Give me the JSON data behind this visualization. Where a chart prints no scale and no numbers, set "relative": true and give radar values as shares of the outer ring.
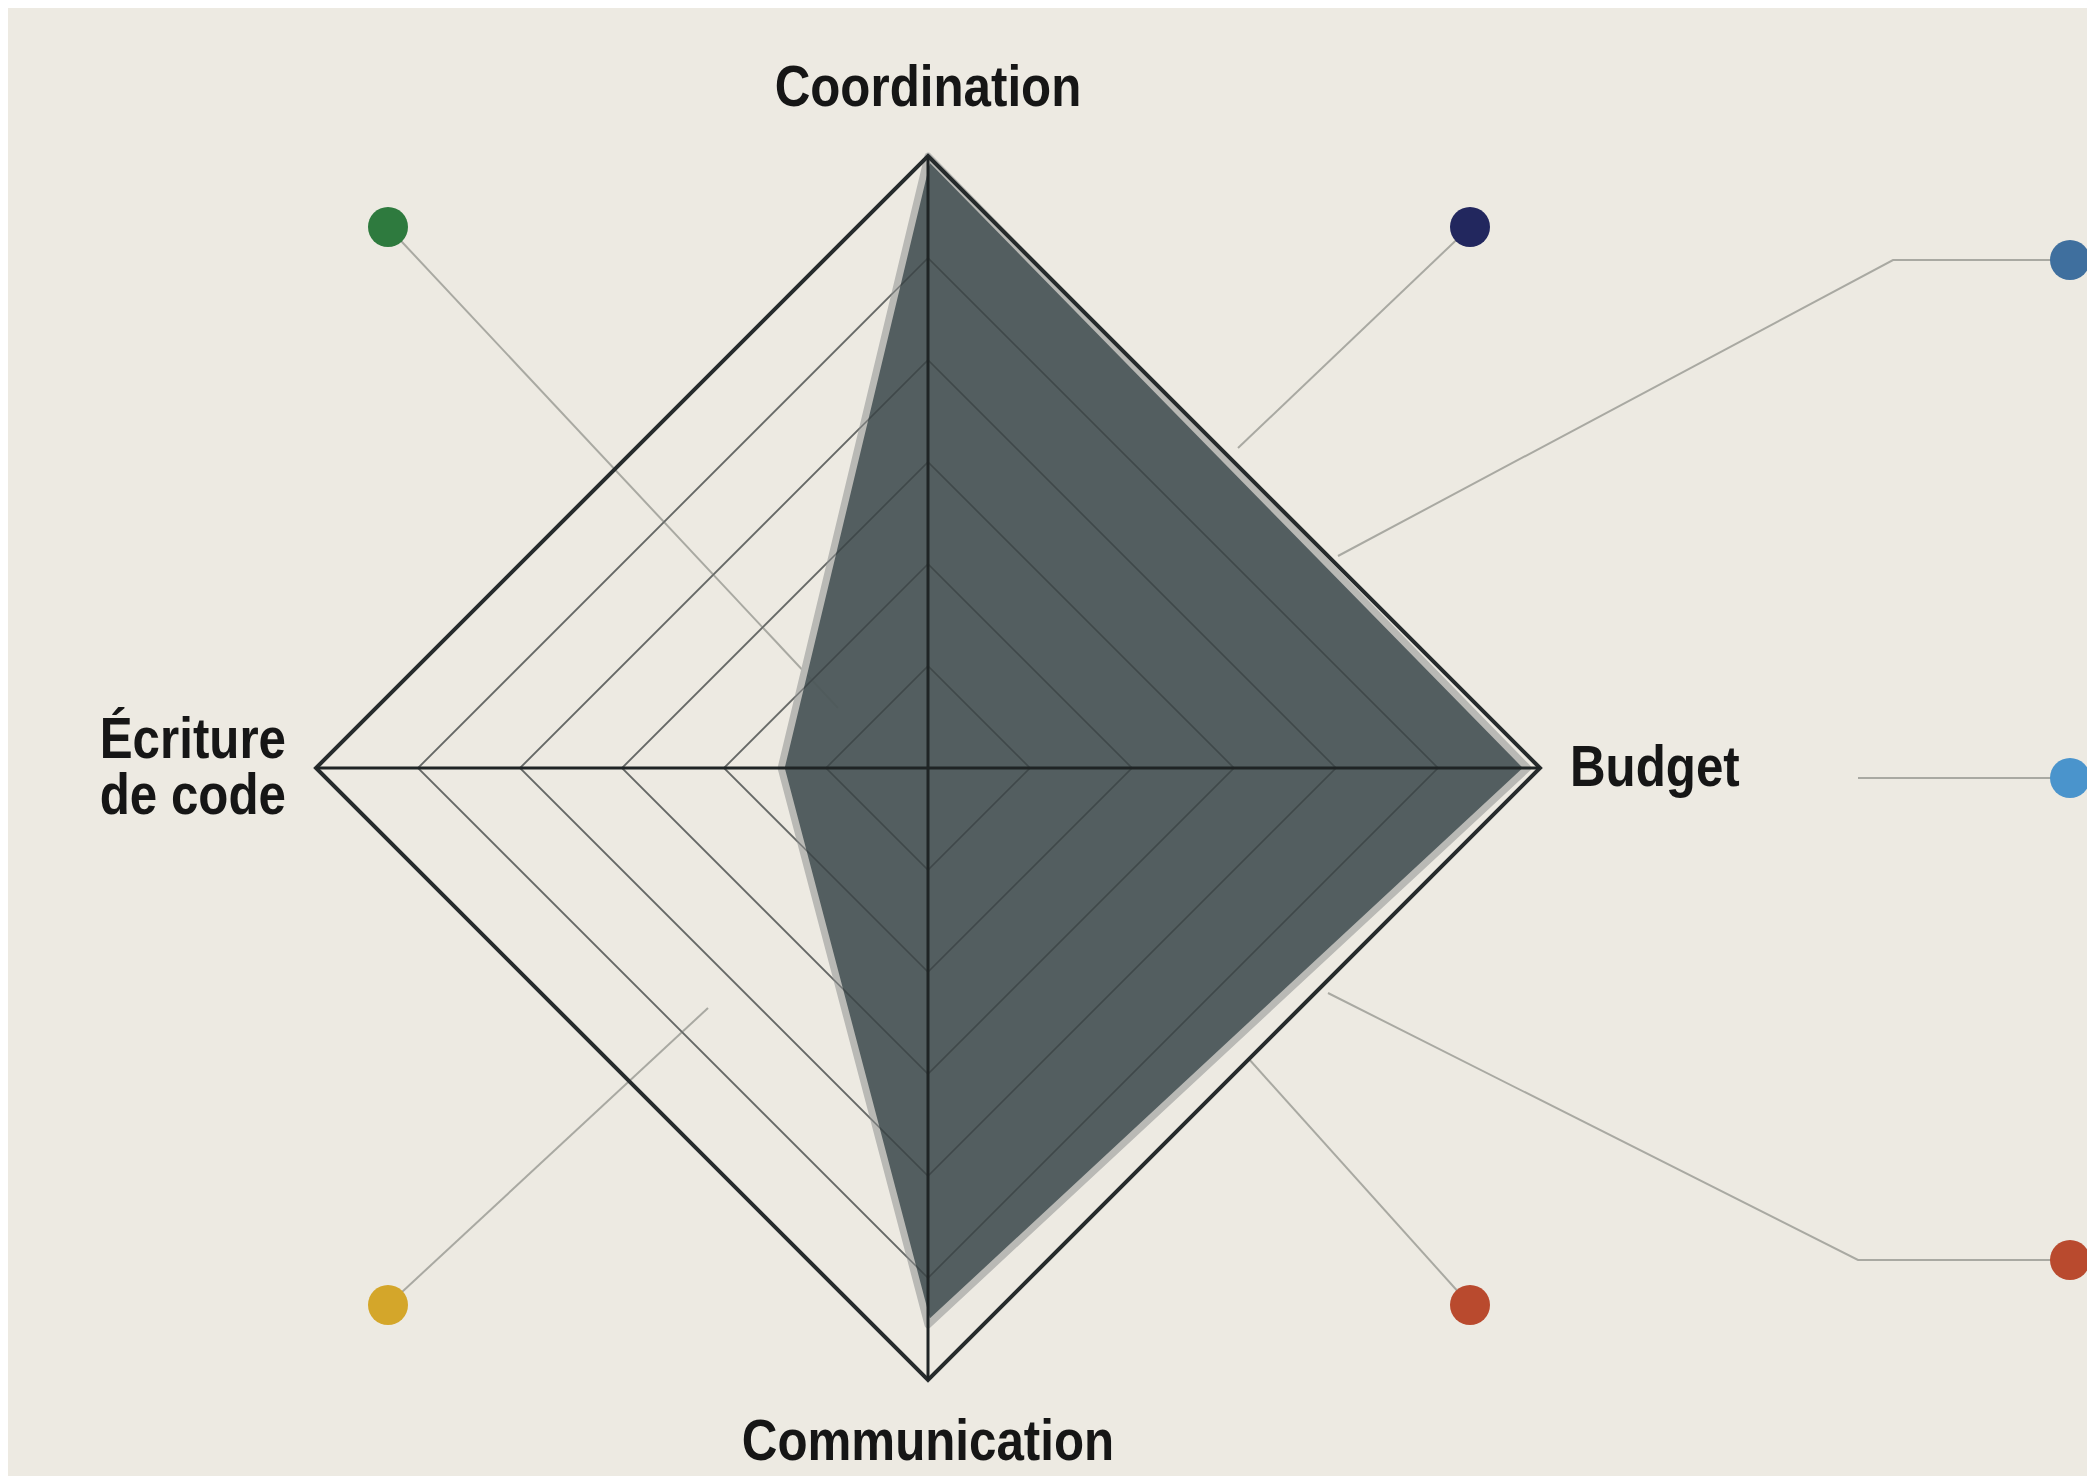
{
  "chart_data": {
    "type": "radar",
    "relative": true,
    "grid": true,
    "categories": [
      "Coordination",
      "Budget",
      "Communication",
      "Écriture de code"
    ],
    "series": [
      {
        "color": "#4b5659",
        "values": [
          1.0,
          0.98,
          0.91,
          0.24
        ]
      }
    ]
  }
}
